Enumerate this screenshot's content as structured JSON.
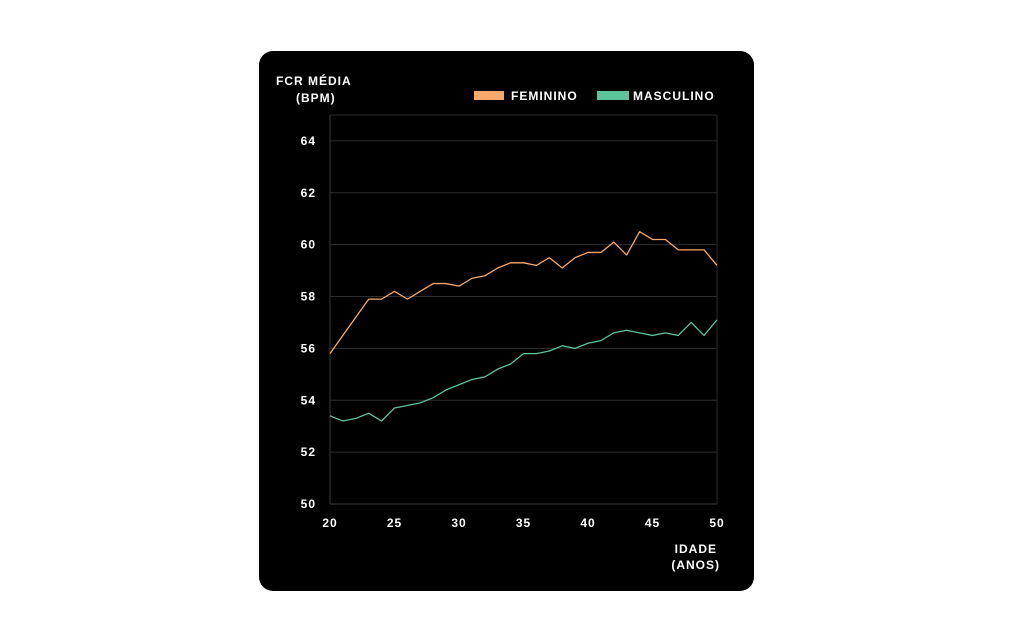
{
  "chart_data": {
    "type": "line",
    "ylabel": [
      "FCR MÉDIA",
      "(BPM)"
    ],
    "xlabel": [
      "IDADE",
      "(ANOS)"
    ],
    "xlim": [
      20,
      50
    ],
    "ylim": [
      50,
      65
    ],
    "xticks": [
      20,
      25,
      30,
      35,
      40,
      45,
      50
    ],
    "yticks": [
      50,
      52,
      54,
      56,
      58,
      60,
      62,
      64
    ],
    "grid": true,
    "legend_position": "top-right",
    "x": [
      20,
      21,
      22,
      23,
      24,
      25,
      26,
      27,
      28,
      29,
      30,
      31,
      32,
      33,
      34,
      35,
      36,
      37,
      38,
      39,
      40,
      41,
      42,
      43,
      44,
      45,
      46,
      47,
      48,
      49,
      50
    ],
    "series": [
      {
        "name": "FEMININO",
        "color": "#f6a96b",
        "values": [
          55.8,
          56.5,
          57.2,
          57.9,
          57.9,
          58.2,
          57.9,
          58.2,
          58.5,
          58.5,
          58.4,
          58.7,
          58.8,
          59.1,
          59.3,
          59.3,
          59.2,
          59.5,
          59.1,
          59.5,
          59.7,
          59.7,
          60.1,
          59.6,
          60.5,
          60.2,
          60.2,
          59.8,
          59.8,
          59.8,
          59.2
        ]
      },
      {
        "name": "MASCULINO",
        "color": "#5cc39c",
        "values": [
          53.4,
          53.2,
          53.3,
          53.5,
          53.2,
          53.7,
          53.8,
          53.9,
          54.1,
          54.4,
          54.6,
          54.8,
          54.9,
          55.2,
          55.4,
          55.8,
          55.8,
          55.9,
          56.1,
          56.0,
          56.2,
          56.3,
          56.6,
          56.7,
          56.6,
          56.5,
          56.6,
          56.5,
          57.0,
          56.5,
          57.1
        ]
      }
    ]
  }
}
